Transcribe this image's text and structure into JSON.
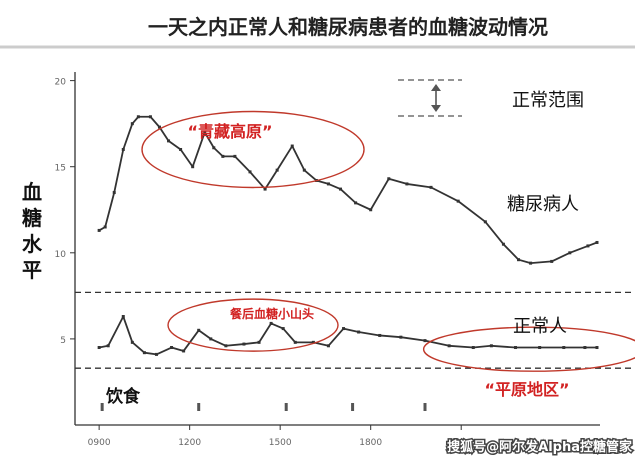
{
  "chart_data": {
    "type": "line",
    "title": "一天之内正常人和糖尿病患者的血糖波动情况",
    "ylabel": "血糖水平",
    "x_ticks": [
      "0900",
      "1200",
      "1500",
      "1800",
      "2100"
    ],
    "y_ticks": [
      "20",
      "15",
      "10",
      "5"
    ],
    "ylim": [
      0,
      20.5
    ],
    "xlim": [
      8.2,
      25.6
    ],
    "grid": false,
    "normal_range": {
      "low": 3.3,
      "high": 7.7
    },
    "legend": {
      "range_label": "正常范围"
    },
    "series": [
      {
        "name": "糖尿病人",
        "points": [
          [
            9.0,
            11.3
          ],
          [
            9.2,
            11.5
          ],
          [
            9.5,
            13.5
          ],
          [
            9.8,
            16.0
          ],
          [
            10.1,
            17.5
          ],
          [
            10.3,
            17.9
          ],
          [
            10.7,
            17.9
          ],
          [
            11.0,
            17.3
          ],
          [
            11.3,
            16.5
          ],
          [
            11.7,
            16.0
          ],
          [
            12.1,
            15.0
          ],
          [
            12.5,
            17.0
          ],
          [
            12.8,
            16.1
          ],
          [
            13.1,
            15.6
          ],
          [
            13.5,
            15.6
          ],
          [
            14.0,
            14.7
          ],
          [
            14.5,
            13.7
          ],
          [
            14.9,
            14.8
          ],
          [
            15.4,
            16.2
          ],
          [
            15.8,
            14.8
          ],
          [
            16.2,
            14.2
          ],
          [
            16.6,
            14.0
          ],
          [
            17.0,
            13.7
          ],
          [
            17.5,
            12.9
          ],
          [
            18.0,
            12.5
          ],
          [
            18.6,
            14.3
          ],
          [
            19.2,
            14.0
          ],
          [
            20.0,
            13.8
          ],
          [
            20.9,
            13.0
          ],
          [
            21.8,
            11.8
          ],
          [
            22.4,
            10.5
          ],
          [
            22.9,
            9.6
          ],
          [
            23.3,
            9.4
          ],
          [
            24.0,
            9.5
          ],
          [
            24.6,
            10.0
          ],
          [
            25.2,
            10.4
          ],
          [
            25.5,
            10.6
          ]
        ]
      },
      {
        "name": "正常人",
        "points": [
          [
            9.0,
            4.5
          ],
          [
            9.3,
            4.6
          ],
          [
            9.8,
            6.3
          ],
          [
            10.1,
            4.8
          ],
          [
            10.5,
            4.2
          ],
          [
            10.9,
            4.1
          ],
          [
            11.4,
            4.5
          ],
          [
            11.8,
            4.3
          ],
          [
            12.3,
            5.5
          ],
          [
            12.7,
            5.0
          ],
          [
            13.2,
            4.6
          ],
          [
            13.8,
            4.7
          ],
          [
            14.3,
            4.8
          ],
          [
            14.7,
            5.9
          ],
          [
            15.1,
            5.6
          ],
          [
            15.5,
            4.8
          ],
          [
            16.1,
            4.8
          ],
          [
            16.6,
            4.6
          ],
          [
            17.1,
            5.6
          ],
          [
            17.6,
            5.4
          ],
          [
            18.3,
            5.2
          ],
          [
            19.0,
            5.1
          ],
          [
            19.8,
            4.9
          ],
          [
            20.6,
            4.6
          ],
          [
            21.4,
            4.5
          ],
          [
            22.0,
            4.6
          ],
          [
            22.8,
            4.5
          ],
          [
            23.6,
            4.5
          ],
          [
            24.4,
            4.5
          ],
          [
            25.1,
            4.5
          ],
          [
            25.5,
            4.5
          ]
        ]
      }
    ],
    "meal_times": [
      9.1,
      12.3,
      15.2,
      17.4,
      19.8
    ],
    "annotations": {
      "plateau_high": "“青藏高原”",
      "post_meal": "餐后血糖小山头",
      "plateau_low": "“平原地区”",
      "diet": "饮食",
      "series_diabetic": "糖尿病人",
      "series_normal": "正常人"
    },
    "colors": {
      "line": "#333333",
      "dashed": "#333333",
      "ellipse": "#c0392b",
      "red_text": "#d22222",
      "range_arrow": "#555555"
    }
  },
  "watermark": "搜狐号@阿尔发Alpha控糖管家"
}
